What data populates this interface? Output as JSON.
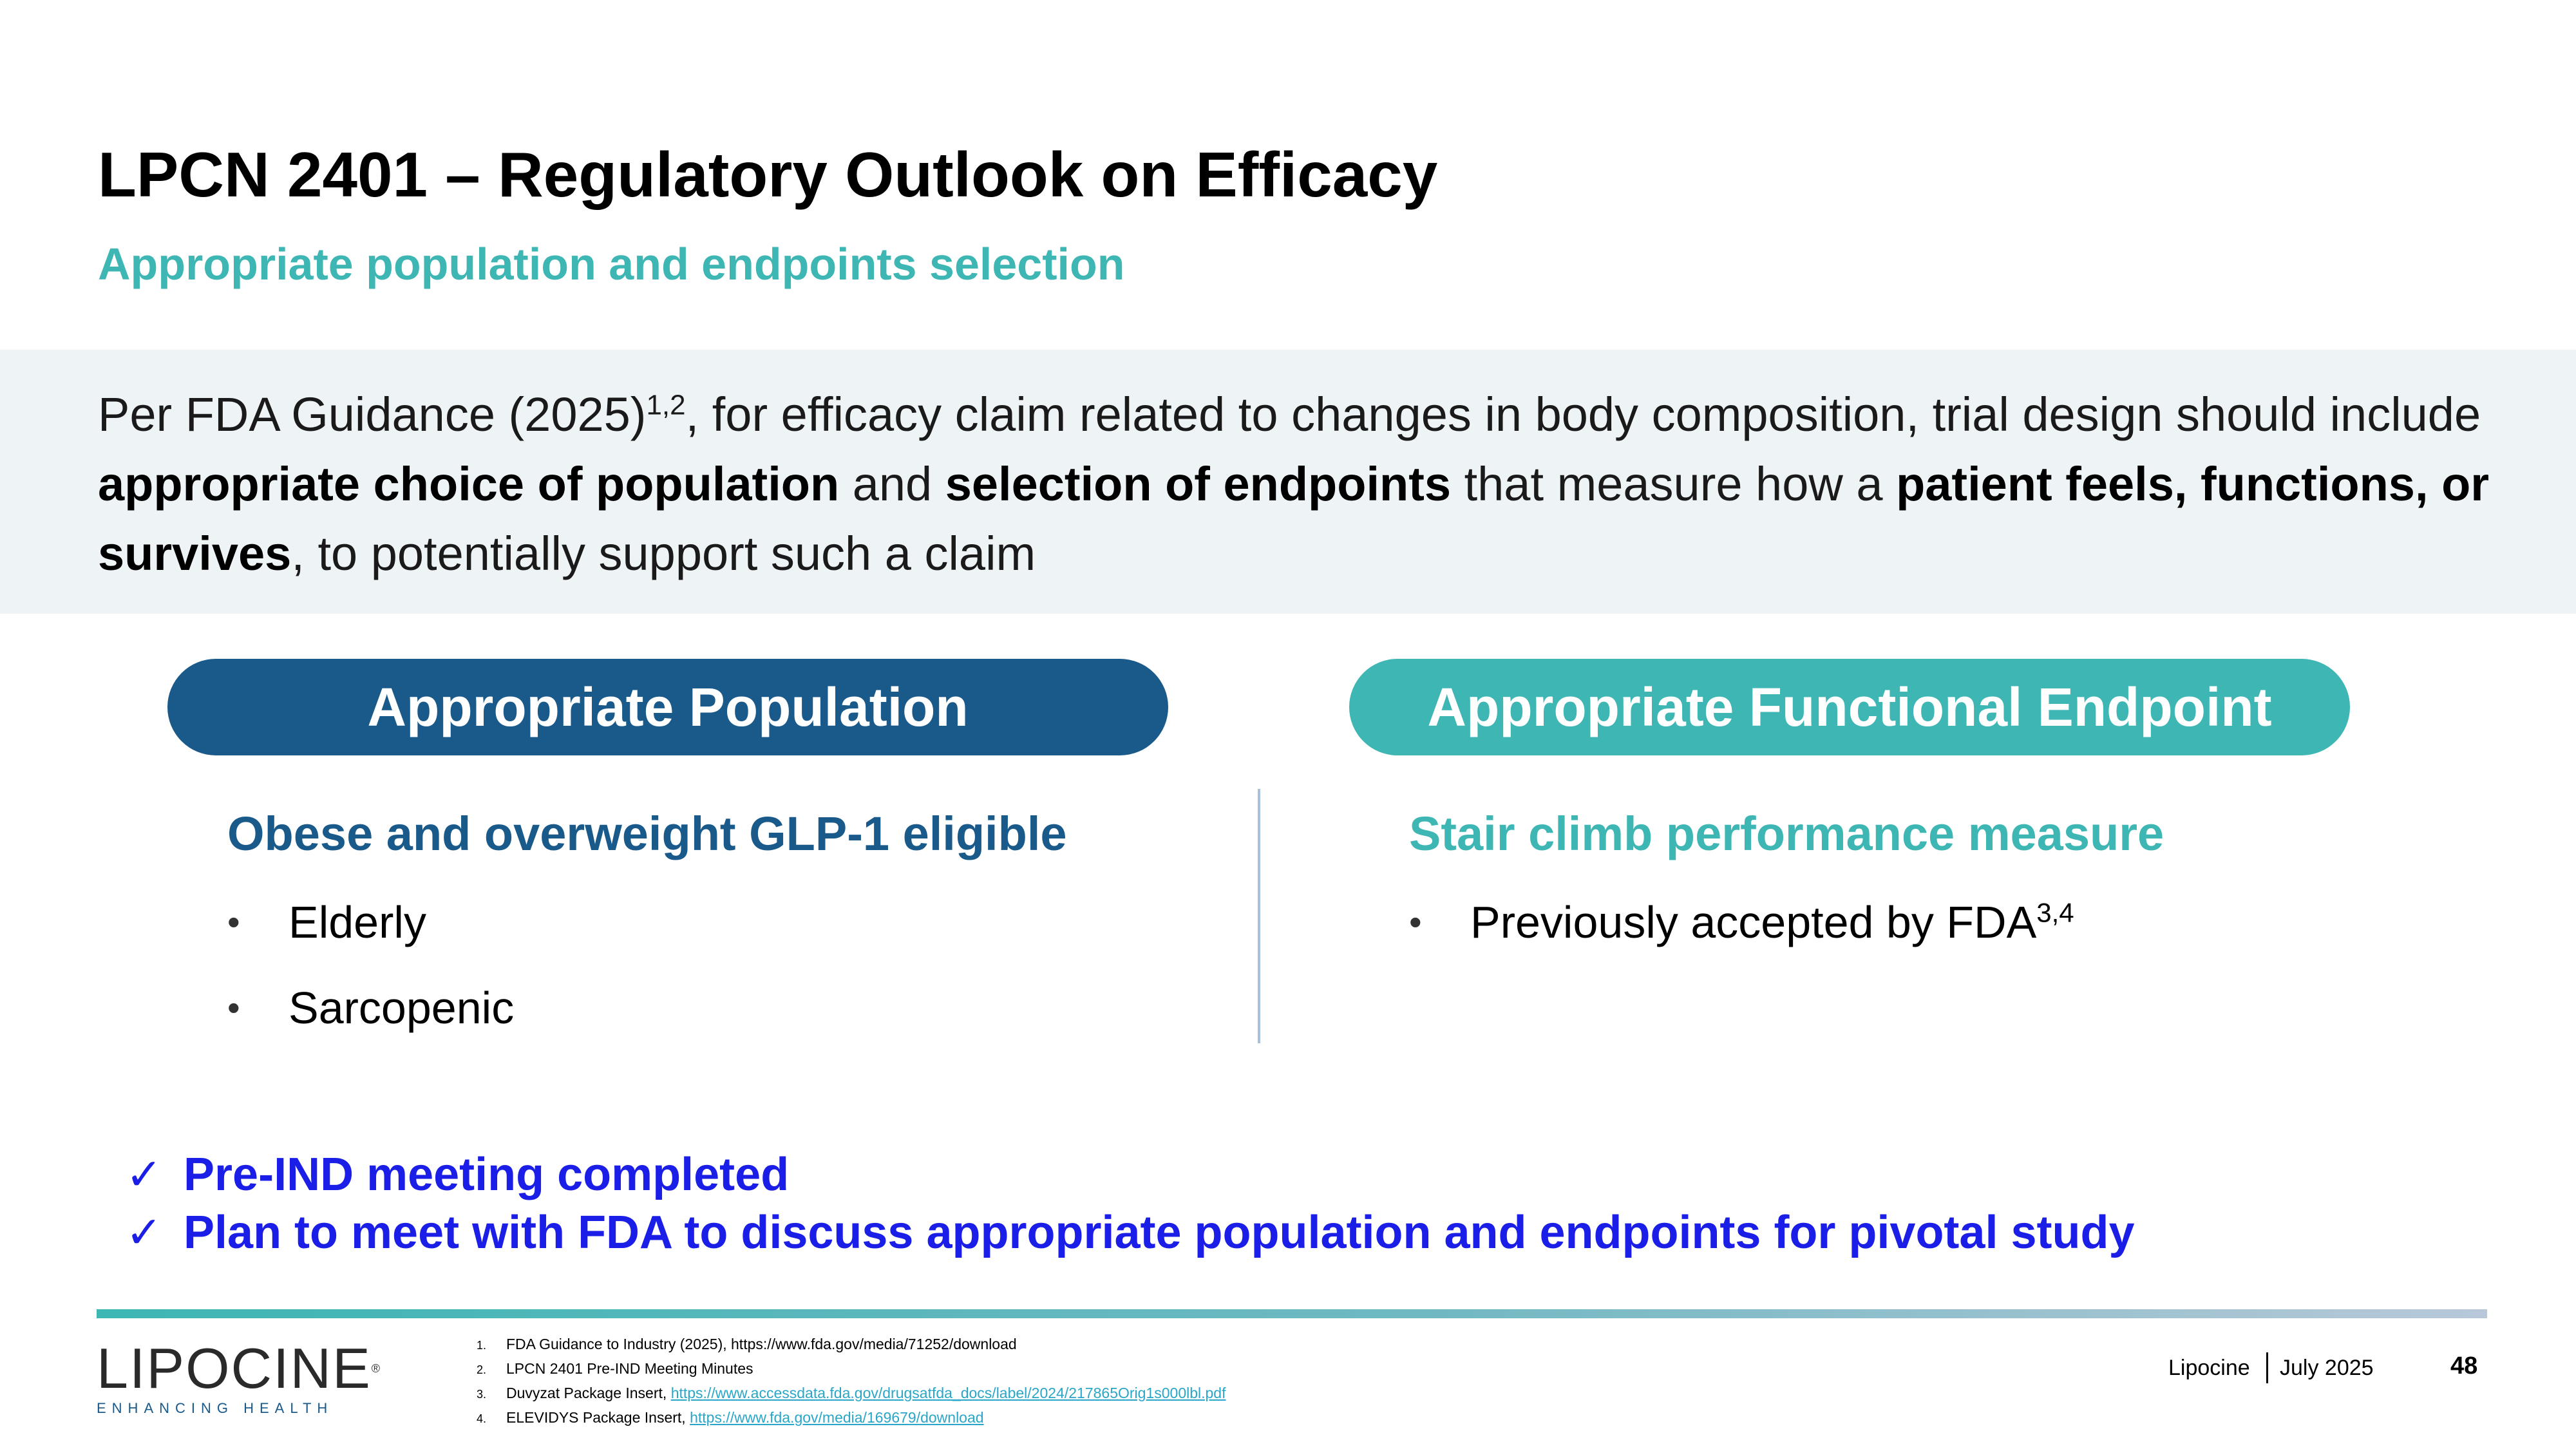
{
  "title": "LPCN 2401 – Regulatory Outlook on Efficacy",
  "subtitle": "Appropriate population and endpoints selection",
  "guidance": {
    "p1": "Per FDA Guidance (2025)",
    "p1_sup": "1,2",
    "p2": ",  for efficacy claim related to changes in body composition, trial design should include ",
    "b1": "appropriate choice of population",
    "p3": " and ",
    "b2": "selection of endpoints",
    "p4": " that measure how a ",
    "b3": "patient feels, functions, or survives",
    "p5": ", to potentially support such a claim"
  },
  "population": {
    "label": "Appropriate Population",
    "heading": "Obese and overweight GLP-1 eligible",
    "bullets": [
      "Elderly",
      "Sarcopenic"
    ]
  },
  "endpoint": {
    "label": "Appropriate Functional Endpoint",
    "heading": "Stair climb performance measure",
    "bullet_text": "Previously accepted by FDA",
    "bullet_sup": "3,4"
  },
  "checks": [
    "Pre-IND meeting completed",
    "Plan to meet with FDA to discuss appropriate population and endpoints for pivotal study"
  ],
  "logo": {
    "word": "LIPOCINE",
    "mark": "®",
    "tagline": "ENHANCING HEALTH"
  },
  "references": [
    {
      "num": "1.",
      "text": "FDA Guidance to Industry (2025), https://www.fda.gov/media/71252/download",
      "link": ""
    },
    {
      "num": "2.",
      "text": "LPCN 2401 Pre-IND Meeting Minutes",
      "link": ""
    },
    {
      "num": "3.",
      "text": "Duvyzat Package Insert, ",
      "link": "https://www.accessdata.fda.gov/drugsatfda_docs/label/2024/217865Orig1s000lbl.pdf"
    },
    {
      "num": "4.",
      "text": "ELEVIDYS Package Insert, ",
      "link": "https://www.fda.gov/media/169679/download"
    }
  ],
  "footer": {
    "company": "Lipocine",
    "date": "July 2025",
    "page": "48"
  },
  "colors": {
    "navy": "#1a5a8a",
    "teal": "#3db6b4",
    "check_blue": "#1a1ee6",
    "band": "#eef3f6"
  }
}
